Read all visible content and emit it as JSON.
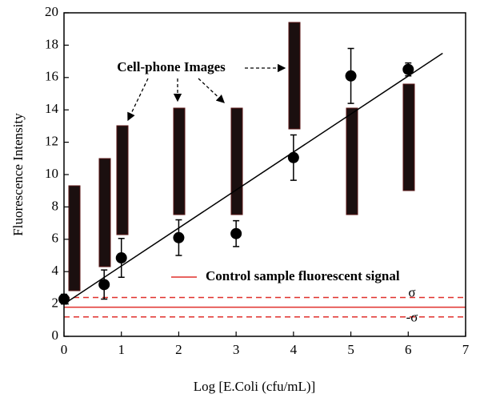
{
  "chart_data": {
    "type": "scatter",
    "xlabel": "Log [E.Coli (cfu/mL)]",
    "ylabel": "Fluorescence Intensity",
    "x": [
      0,
      0.7,
      1,
      2,
      3,
      4,
      5,
      6
    ],
    "series": [
      {
        "color": "#000000",
        "values": [
          2.3,
          3.2,
          4.85,
          6.1,
          6.35,
          11.05,
          16.1,
          16.5
        ],
        "errors": [
          0.3,
          0.9,
          1.2,
          1.1,
          0.8,
          1.4,
          1.7,
          0.4
        ]
      }
    ],
    "fit_line": {
      "x": [
        0,
        6.6
      ],
      "values": [
        2.0,
        17.5
      ],
      "color": "#000000"
    },
    "control": {
      "label": "Control sample fluorescent signal",
      "value": 1.8,
      "upper": 2.4,
      "lower": 1.2,
      "upper_label": "σ",
      "lower_label": "-σ",
      "color": "#e0302c"
    },
    "annotation": "Cell-phone Images",
    "xlim": [
      0,
      7
    ],
    "xticks": [
      0,
      1,
      2,
      3,
      4,
      5,
      6,
      7
    ],
    "ylim": [
      0,
      20
    ],
    "yticks": [
      0,
      2,
      4,
      6,
      8,
      10,
      12,
      14,
      16,
      18,
      20
    ]
  }
}
